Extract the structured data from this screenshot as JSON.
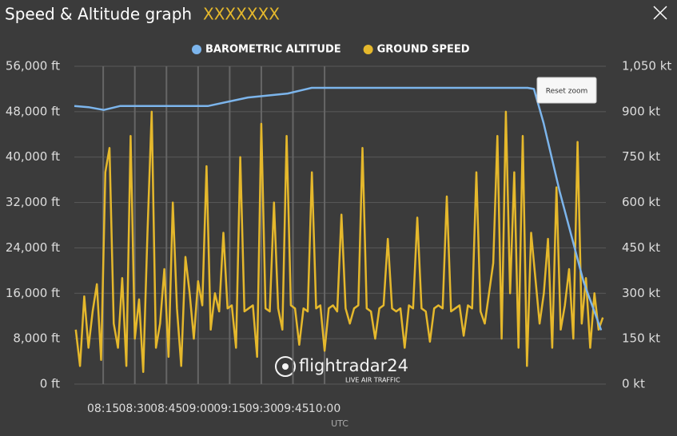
{
  "chart_data": {
    "type": "line",
    "title": "Speed & Altitude graph",
    "subtitle": "XXXXXXX",
    "x_label": "UTC",
    "reset_button": "Reset zoom",
    "watermark": "flightradar24",
    "watermark_sub": "LIVE AIR TRAFFIC",
    "grid": true,
    "xlim": [
      481.3,
      732.3
    ],
    "xticks": [
      {
        "value": 495,
        "label": "08:15"
      },
      {
        "value": 510,
        "label": "08:30"
      },
      {
        "value": 525,
        "label": "08:45"
      },
      {
        "value": 540,
        "label": "09:00"
      },
      {
        "value": 555,
        "label": "09:15"
      },
      {
        "value": 570,
        "label": "09:30"
      },
      {
        "value": 585,
        "label": "09:45"
      },
      {
        "value": 600,
        "label": "10:00"
      }
    ],
    "ylim": [
      0,
      56000
    ],
    "yticks": [
      {
        "value": 0,
        "label": "0 ft"
      },
      {
        "value": 8000,
        "label": "8,000 ft"
      },
      {
        "value": 16000,
        "label": "16,000 ft"
      },
      {
        "value": 24000,
        "label": "24,000 ft"
      },
      {
        "value": 32000,
        "label": "32,000 ft"
      },
      {
        "value": 40000,
        "label": "40,000 ft"
      },
      {
        "value": 48000,
        "label": "48,000 ft"
      },
      {
        "value": 56000,
        "label": "56,000 ft"
      }
    ],
    "y2lim": [
      0,
      1050
    ],
    "y2ticks": [
      {
        "value": 0,
        "label": "0 kt"
      },
      {
        "value": 150,
        "label": "150 kt"
      },
      {
        "value": 300,
        "label": "300 kt"
      },
      {
        "value": 450,
        "label": "450 kt"
      },
      {
        "value": 600,
        "label": "600 kt"
      },
      {
        "value": 750,
        "label": "750 kt"
      },
      {
        "value": 900,
        "label": "900 kt"
      },
      {
        "value": 1050,
        "label": "1,050 kt"
      }
    ],
    "series": [
      {
        "name": "BAROMETRIC ALTITUDE",
        "color": "#7cb5ec",
        "x": [
          481.3,
          488,
          495.3,
          502.9,
          544.6,
          563.6,
          582.5,
          593.9,
          696.3,
          699.3,
          703.9,
          711.5,
          722.9,
          731.2
        ],
        "values": [
          49000,
          48800,
          48300,
          49000,
          49000,
          50500,
          51200,
          52200,
          52200,
          52000,
          46000,
          34000,
          18000,
          9500
        ]
      },
      {
        "name": "GROUND SPEED",
        "color": "#e5b82c",
        "axis": "y2",
        "x": [
          482,
          484,
          486,
          488,
          490,
          492,
          494,
          496,
          498,
          500,
          502,
          504,
          506,
          508,
          510,
          512,
          514,
          516,
          518,
          520,
          522,
          524,
          526,
          528,
          530,
          532,
          534,
          536,
          538,
          540,
          542,
          544,
          546,
          548,
          550,
          552,
          554,
          556,
          558,
          560,
          562,
          564,
          566,
          568,
          570,
          572,
          574,
          576,
          578,
          580,
          582,
          584,
          586,
          588,
          590,
          592,
          594,
          596,
          598,
          600,
          602,
          604,
          606,
          608,
          610,
          612,
          614,
          616,
          618,
          620,
          622,
          624,
          626,
          628,
          630,
          632,
          634,
          636,
          638,
          640,
          642,
          644,
          646,
          648,
          650,
          652,
          654,
          656,
          658,
          660,
          662,
          664,
          666,
          668,
          670,
          672,
          674,
          676,
          678,
          680,
          682,
          684,
          686,
          688,
          690,
          692,
          694,
          696,
          698,
          700,
          702,
          704,
          706,
          708,
          710,
          712,
          714,
          716,
          718,
          720,
          722,
          724,
          726,
          728,
          730,
          732
        ],
        "values": [
          180,
          60,
          290,
          120,
          240,
          330,
          80,
          700,
          780,
          200,
          120,
          350,
          60,
          820,
          150,
          280,
          40,
          500,
          900,
          120,
          200,
          380,
          90,
          600,
          250,
          60,
          420,
          300,
          150,
          340,
          260,
          720,
          180,
          300,
          240,
          500,
          250,
          260,
          120,
          750,
          240,
          250,
          260,
          90,
          860,
          250,
          240,
          600,
          250,
          180,
          820,
          260,
          250,
          130,
          250,
          240,
          700,
          250,
          260,
          110,
          250,
          260,
          240,
          560,
          250,
          200,
          250,
          260,
          780,
          250,
          240,
          150,
          250,
          260,
          480,
          250,
          240,
          250,
          120,
          260,
          250,
          550,
          250,
          240,
          140,
          250,
          260,
          250,
          620,
          240,
          250,
          260,
          160,
          260,
          250,
          700,
          240,
          200,
          300,
          400,
          820,
          150,
          900,
          300,
          700,
          120,
          820,
          60,
          500,
          350,
          200,
          300,
          480,
          120,
          650,
          180,
          260,
          380,
          150,
          800,
          200,
          350,
          120,
          300,
          180,
          220
        ]
      }
    ]
  }
}
